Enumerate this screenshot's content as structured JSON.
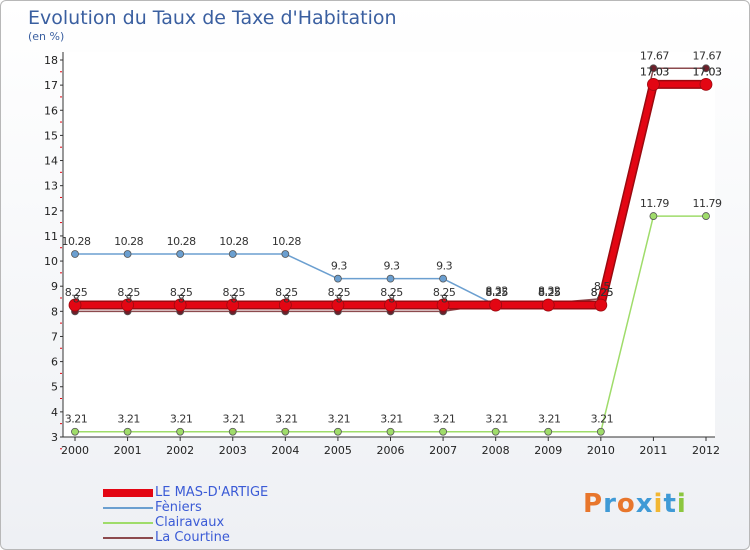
{
  "title": "Evolution du Taux de Taxe d'Habitation",
  "unit": "(en %)",
  "logo": {
    "text": "Proxiti",
    "letters": [
      "P",
      "r",
      "o",
      "x",
      "i",
      "t",
      "i"
    ],
    "colors": [
      "#e8762c",
      "#3f9ad6",
      "#e8762c",
      "#3f9ad6",
      "#f2b632",
      "#3f9ad6",
      "#8cc63f"
    ]
  },
  "chart_data": {
    "type": "line",
    "title": "Evolution du Taux de Taxe d'Habitation",
    "ylabel": "(en %)",
    "xlabel": "",
    "x": [
      "2000",
      "2001",
      "2002",
      "2003",
      "2004",
      "2005",
      "2006",
      "2007",
      "2008",
      "2009",
      "2010",
      "2011",
      "2012"
    ],
    "ylim": [
      3,
      18
    ],
    "yticks": [
      3,
      4,
      5,
      6,
      7,
      8,
      9,
      10,
      11,
      12,
      13,
      14,
      15,
      16,
      17,
      18
    ],
    "legend_position": "bottom-left",
    "series": [
      {
        "name": "LE MAS-D'ARTIGE",
        "color": "#e30613",
        "width": 6,
        "values": [
          8.25,
          8.25,
          8.25,
          8.25,
          8.25,
          8.25,
          8.25,
          8.25,
          8.25,
          8.25,
          8.25,
          17.03,
          17.03
        ],
        "labels": [
          "8.25",
          "8.25",
          "8.25",
          "8.25",
          "8.25",
          "8.25",
          "8.25",
          "8.25",
          "8.25",
          "8.25",
          "8.25",
          "17.03",
          "17.03"
        ]
      },
      {
        "name": "Fèniers",
        "color": "#6b9fd0",
        "width": 1.5,
        "values": [
          10.28,
          10.28,
          10.28,
          10.28,
          10.28,
          9.3,
          9.3,
          9.3,
          8.25,
          8.25,
          8.25,
          17.03,
          17.03
        ],
        "labels": [
          "10.28",
          "10.28",
          "10.28",
          "10.28",
          "10.28",
          "9.3",
          "9.3",
          "9.3",
          "8.25",
          "8.25",
          "8.25",
          "17.03",
          "17.03"
        ]
      },
      {
        "name": "Clairavaux",
        "color": "#9fdc6a",
        "width": 1.5,
        "values": [
          3.21,
          3.21,
          3.21,
          3.21,
          3.21,
          3.21,
          3.21,
          3.21,
          3.21,
          3.21,
          3.21,
          11.79,
          11.79
        ],
        "labels": [
          "3.21",
          "3.21",
          "3.21",
          "3.21",
          "3.21",
          "3.21",
          "3.21",
          "3.21",
          "3.21",
          "3.21",
          "3.21",
          "11.79",
          "11.79"
        ]
      },
      {
        "name": "La Courtine",
        "color": "#8c4a4e",
        "width": 1.5,
        "values": [
          8,
          8,
          8,
          8,
          8,
          8,
          8,
          8,
          8.32,
          8.32,
          8.5,
          17.67,
          17.67
        ],
        "labels": [
          "8",
          "8",
          "8",
          "8",
          "8",
          "8",
          "8",
          "8",
          "8.32",
          "8.32",
          "8.5",
          "17.67",
          "17.67"
        ]
      }
    ]
  }
}
